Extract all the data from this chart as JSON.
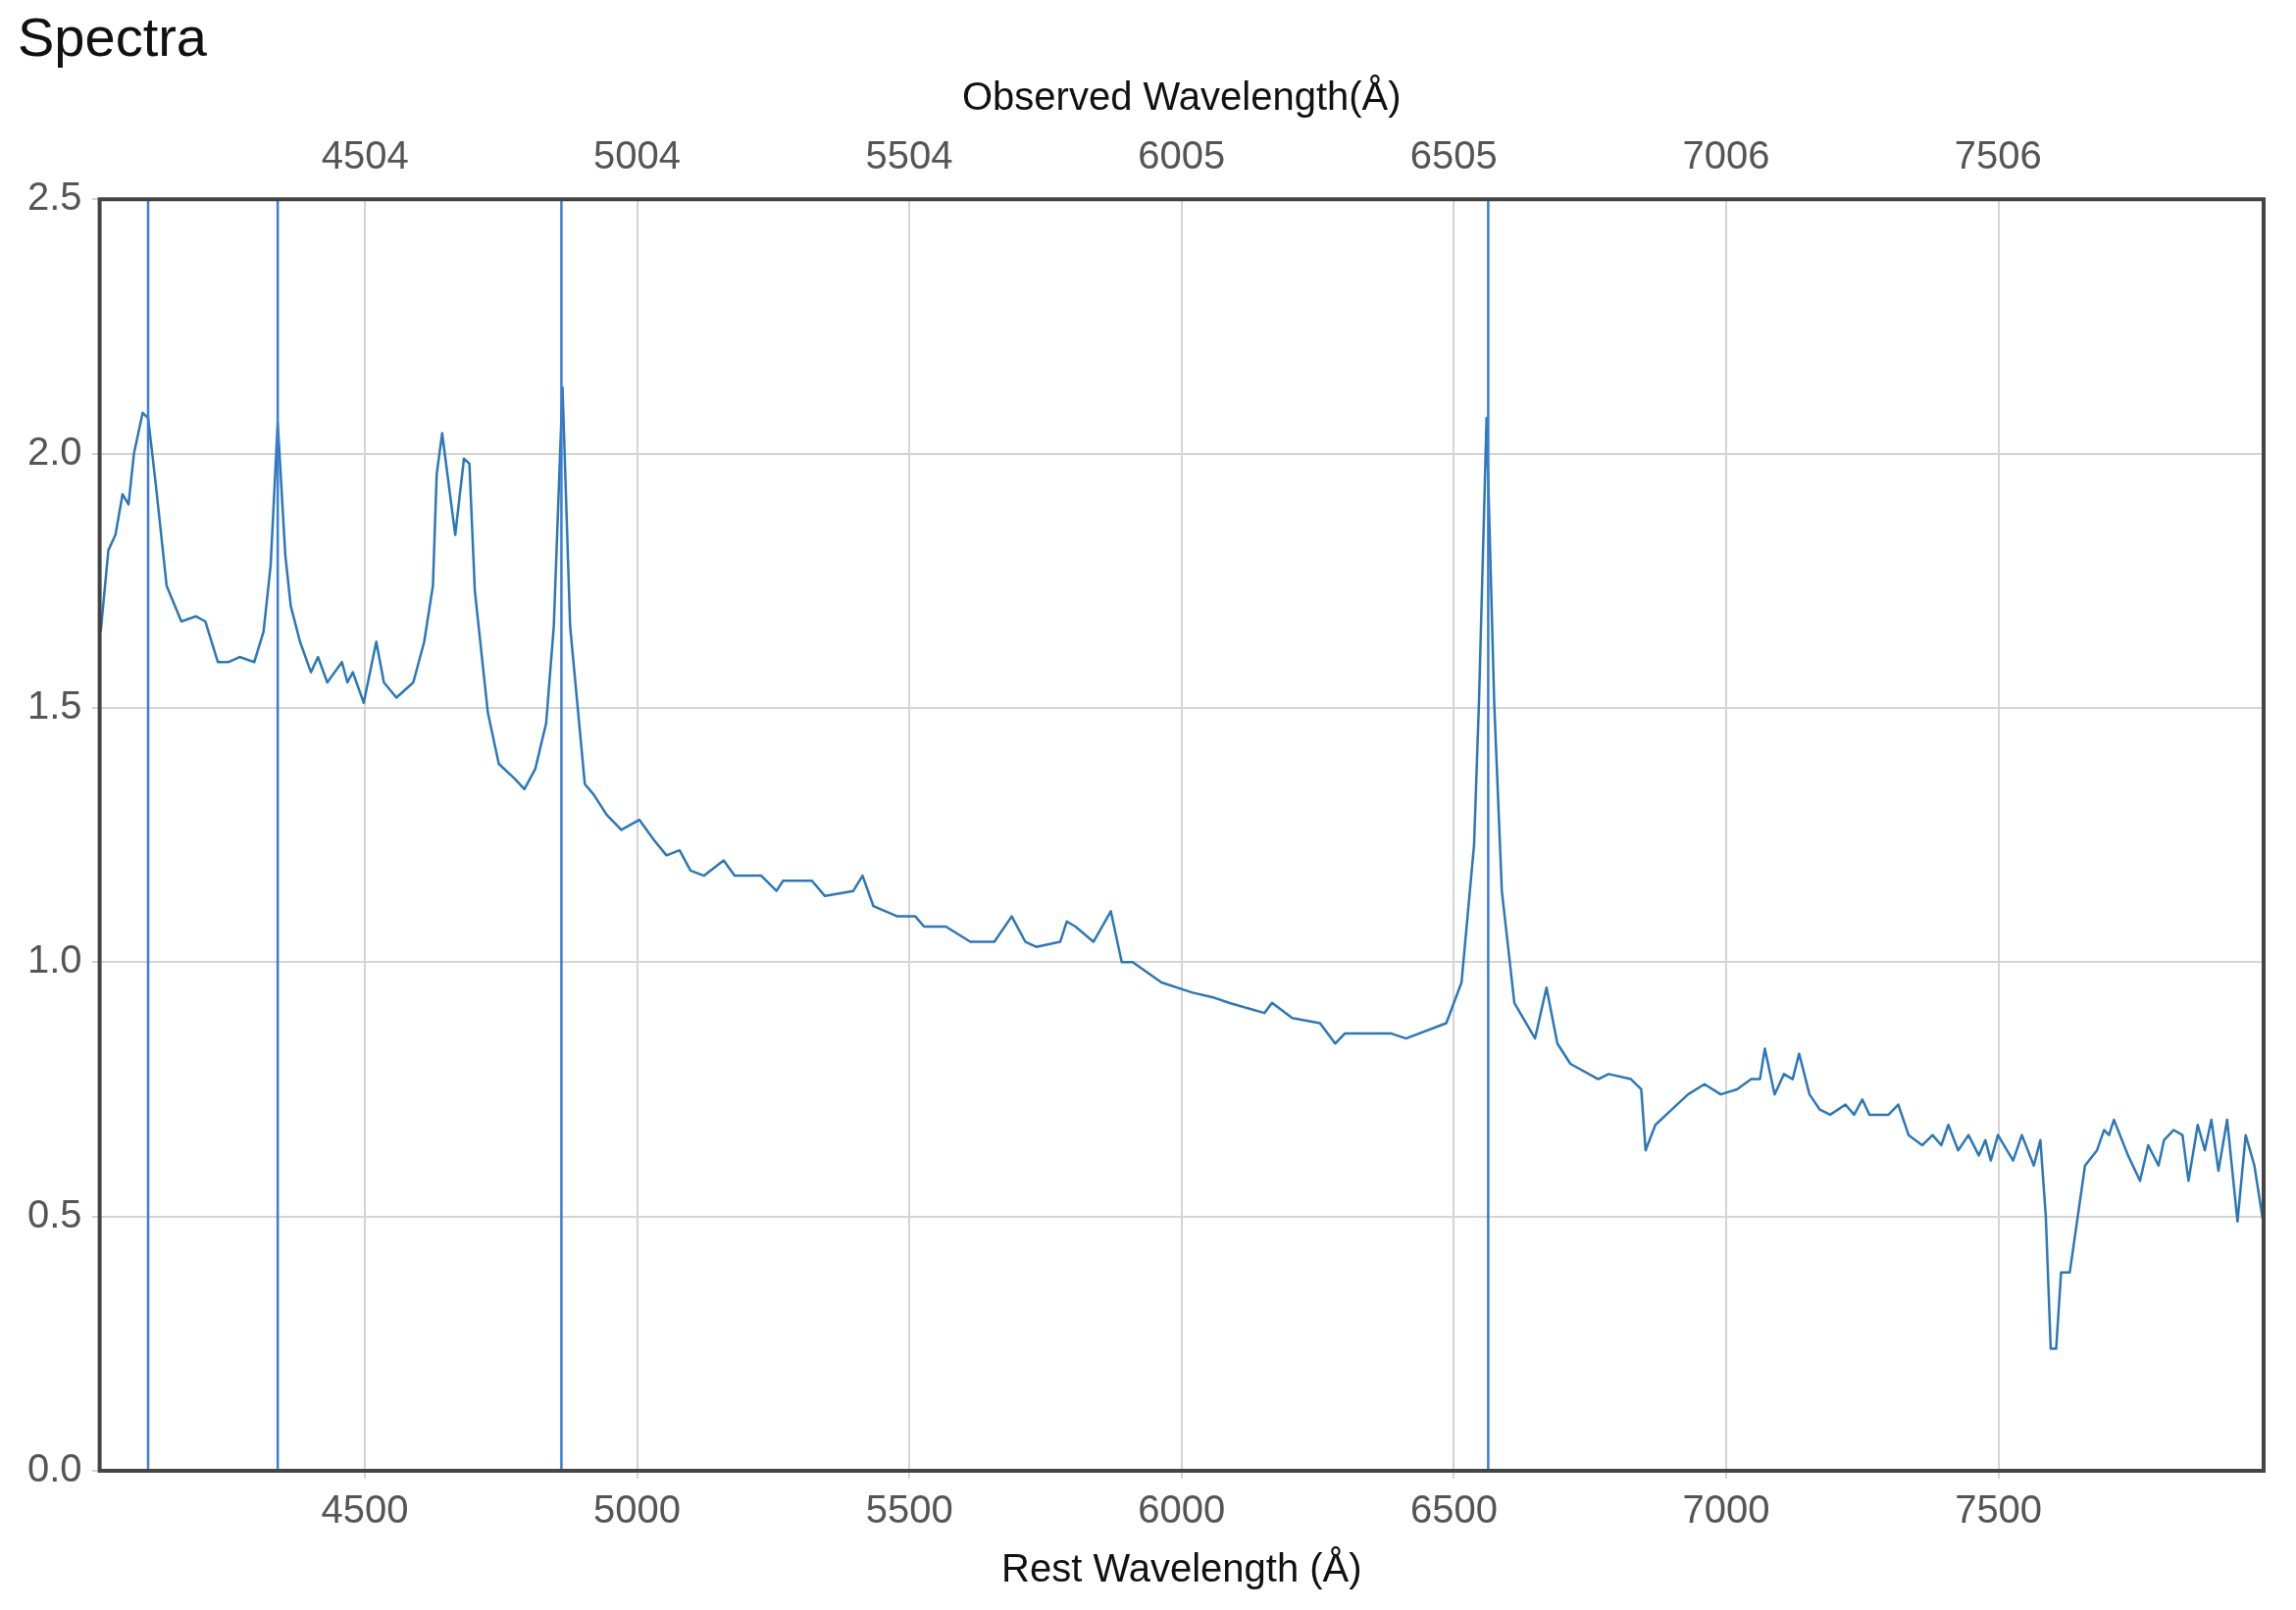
{
  "chart_data": {
    "type": "line",
    "title": "Spectra",
    "xlabel": "Rest Wavelength (Å)",
    "x2label": "Observed Wavelength(Å)",
    "xlim": [
      4013,
      7987
    ],
    "xticks": [
      4500,
      5000,
      5500,
      6000,
      6500,
      7000,
      7500
    ],
    "x2lim": [
      4016,
      7994
    ],
    "x2ticks": [
      4504,
      5004,
      5504,
      6005,
      6505,
      7006,
      7506
    ],
    "ylim": [
      0,
      2.5
    ],
    "yticks": [
      {
        "value": 0,
        "label": "0.0"
      },
      {
        "value": 0.5,
        "label": "0.5"
      },
      {
        "value": 1,
        "label": "1.0"
      },
      {
        "value": 1.5,
        "label": "1.5"
      },
      {
        "value": 2,
        "label": "2.0"
      },
      {
        "value": 2.5,
        "label": "2.5"
      }
    ],
    "grid": true,
    "legend": false,
    "marker": "none",
    "line_style": "solid",
    "ref_lines": [
      {
        "axis": "x",
        "value": 4102,
        "color": "#3b7dd8"
      },
      {
        "axis": "x",
        "value": 4340,
        "color": "#3b7dd8"
      },
      {
        "axis": "x",
        "value": 4861,
        "color": "#3b7dd8"
      },
      {
        "axis": "x",
        "value": 6563,
        "color": "#3b7dd8"
      }
    ],
    "series": [
      {
        "color": "#2b78b8",
        "x": [
          4015,
          4029,
          4042,
          4055,
          4066,
          4076,
          4092,
          4102,
          4116,
          4136,
          4163,
          4190,
          4207,
          4230,
          4250,
          4270,
          4297,
          4314,
          4327,
          4340,
          4354,
          4364,
          4381,
          4401,
          4414,
          4431,
          4458,
          4468,
          4478,
          4498,
          4521,
          4535,
          4558,
          4589,
          4609,
          4625,
          4632,
          4642,
          4666,
          4682,
          4692,
          4702,
          4726,
          4746,
          4776,
          4793,
          4813,
          4833,
          4847,
          4863,
          4877,
          4904,
          4920,
          4944,
          4971,
          5004,
          5031,
          5054,
          5078,
          5098,
          5123,
          5159,
          5179,
          5228,
          5256,
          5268,
          5321,
          5345,
          5397,
          5414,
          5434,
          5478,
          5511,
          5527,
          5567,
          5612,
          5656,
          5688,
          5713,
          5733,
          5777,
          5789,
          5805,
          5838,
          5870,
          5890,
          5910,
          5963,
          6020,
          6060,
          6087,
          6152,
          6166,
          6203,
          6254,
          6282,
          6300,
          6384,
          6412,
          6486,
          6514,
          6537,
          6546,
          6560,
          6574,
          6588,
          6611,
          6649,
          6670,
          6690,
          6714,
          6765,
          6784,
          6825,
          6844,
          6852,
          6870,
          6900,
          6930,
          6960,
          6990,
          7020,
          7046,
          7062,
          7071,
          7089,
          7106,
          7122,
          7134,
          7153,
          7172,
          7191,
          7219,
          7235,
          7250,
          7263,
          7298,
          7316,
          7335,
          7360,
          7379,
          7395,
          7408,
          7426,
          7445,
          7464,
          7476,
          7486,
          7499,
          7527,
          7543,
          7565,
          7577,
          7587,
          7596,
          7606,
          7615,
          7631,
          7659,
          7681,
          7694,
          7703,
          7712,
          7738,
          7760,
          7775,
          7794,
          7804,
          7822,
          7838,
          7849,
          7866,
          7879,
          7891,
          7904,
          7920,
          7939,
          7954,
          7970,
          7986
        ],
        "values": [
          1.65,
          1.81,
          1.84,
          1.92,
          1.9,
          2.0,
          2.08,
          2.07,
          1.94,
          1.74,
          1.67,
          1.68,
          1.67,
          1.59,
          1.59,
          1.6,
          1.59,
          1.65,
          1.78,
          2.06,
          1.8,
          1.7,
          1.63,
          1.57,
          1.6,
          1.55,
          1.59,
          1.55,
          1.57,
          1.51,
          1.63,
          1.55,
          1.52,
          1.55,
          1.63,
          1.74,
          1.96,
          2.04,
          1.84,
          1.99,
          1.98,
          1.73,
          1.49,
          1.39,
          1.36,
          1.34,
          1.38,
          1.47,
          1.66,
          2.13,
          1.66,
          1.35,
          1.33,
          1.29,
          1.26,
          1.28,
          1.24,
          1.21,
          1.22,
          1.18,
          1.17,
          1.2,
          1.17,
          1.17,
          1.14,
          1.16,
          1.16,
          1.13,
          1.14,
          1.17,
          1.11,
          1.09,
          1.09,
          1.07,
          1.07,
          1.04,
          1.04,
          1.09,
          1.04,
          1.03,
          1.04,
          1.08,
          1.07,
          1.04,
          1.1,
          1.0,
          1.0,
          0.96,
          0.94,
          0.93,
          0.92,
          0.9,
          0.92,
          0.89,
          0.88,
          0.84,
          0.86,
          0.86,
          0.85,
          0.88,
          0.96,
          1.23,
          1.51,
          2.07,
          1.51,
          1.14,
          0.92,
          0.85,
          0.95,
          0.84,
          0.8,
          0.77,
          0.78,
          0.77,
          0.75,
          0.63,
          0.68,
          0.71,
          0.74,
          0.76,
          0.74,
          0.75,
          0.77,
          0.77,
          0.83,
          0.74,
          0.78,
          0.77,
          0.82,
          0.74,
          0.71,
          0.7,
          0.72,
          0.7,
          0.73,
          0.7,
          0.7,
          0.72,
          0.66,
          0.64,
          0.66,
          0.64,
          0.68,
          0.63,
          0.66,
          0.62,
          0.65,
          0.61,
          0.66,
          0.61,
          0.66,
          0.6,
          0.65,
          0.5,
          0.24,
          0.24,
          0.39,
          0.39,
          0.6,
          0.63,
          0.67,
          0.66,
          0.69,
          0.62,
          0.57,
          0.64,
          0.6,
          0.65,
          0.67,
          0.66,
          0.57,
          0.68,
          0.63,
          0.69,
          0.59,
          0.69,
          0.49,
          0.66,
          0.6,
          0.49
        ]
      }
    ]
  }
}
